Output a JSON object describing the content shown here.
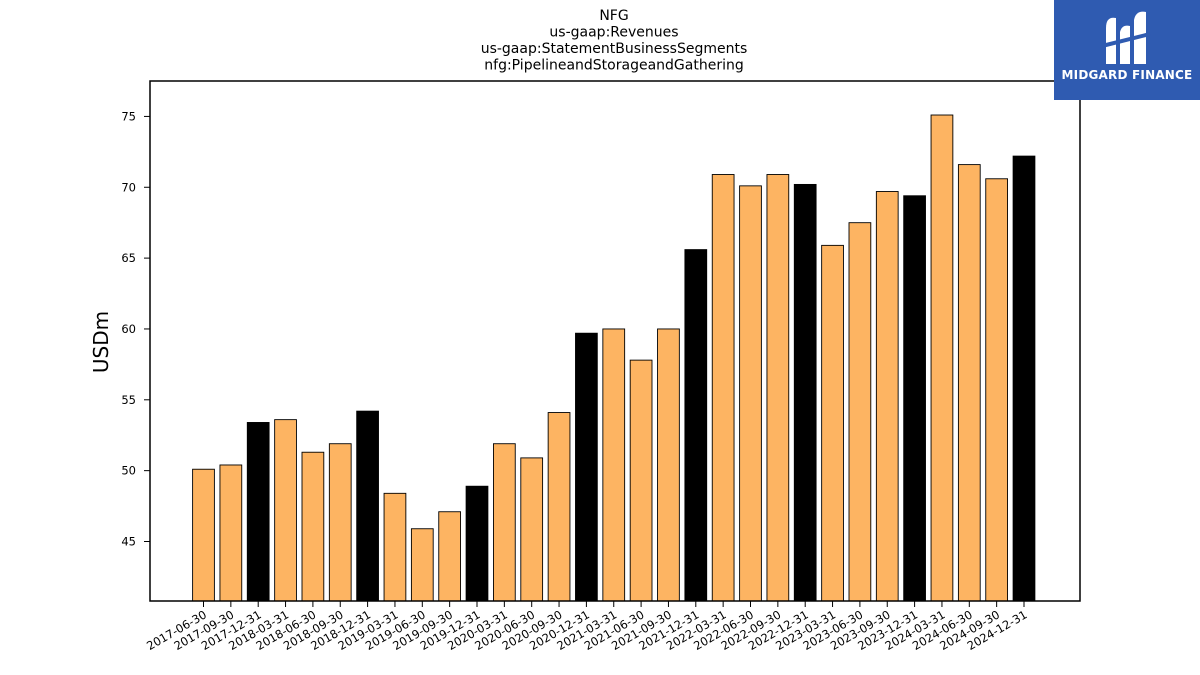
{
  "chart_data": {
    "type": "bar",
    "title_lines": [
      "NFG",
      "us-gaap:Revenues",
      "us-gaap:StatementBusinessSegments",
      "nfg:PipelineandStorageandGathering"
    ],
    "ylabel": "USDm",
    "xlabel": "",
    "ylim": [
      40.8,
      77.5
    ],
    "yticks": [
      45,
      50,
      55,
      60,
      65,
      70,
      75
    ],
    "categories": [
      "2017-06-30",
      "2017-09-30",
      "2017-12-31",
      "2018-03-31",
      "2018-06-30",
      "2018-09-30",
      "2018-12-31",
      "2019-03-31",
      "2019-06-30",
      "2019-09-30",
      "2019-12-31",
      "2020-03-31",
      "2020-06-30",
      "2020-09-30",
      "2020-12-31",
      "2021-03-31",
      "2021-06-30",
      "2021-09-30",
      "2021-12-31",
      "2022-03-31",
      "2022-06-30",
      "2022-09-30",
      "2022-12-31",
      "2023-03-31",
      "2023-06-30",
      "2023-09-30",
      "2023-12-31",
      "2024-03-31",
      "2024-06-30",
      "2024-09-30",
      "2024-12-31"
    ],
    "values": [
      50.1,
      50.4,
      53.4,
      53.6,
      51.3,
      51.9,
      54.2,
      48.4,
      45.9,
      47.1,
      48.9,
      51.9,
      50.9,
      54.1,
      59.7,
      60.0,
      57.8,
      60.0,
      65.6,
      70.9,
      70.1,
      70.9,
      70.2,
      65.9,
      67.5,
      69.7,
      69.4,
      75.1,
      71.6,
      70.6,
      72.2
    ],
    "colors": {
      "quarter": "#fdb462",
      "year_end": "#000000",
      "edge": "#000000"
    },
    "grid": false
  },
  "logo": {
    "text": "MIDGARD FINANCE"
  }
}
